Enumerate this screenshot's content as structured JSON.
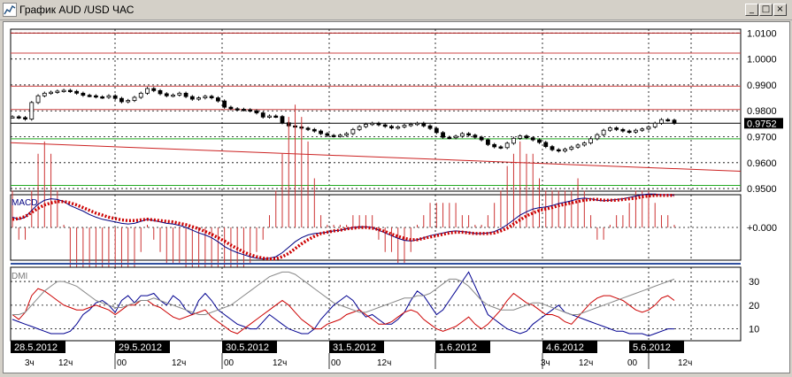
{
  "window": {
    "title": "График AUD /USD  ЧАС",
    "minimize_glyph": "_",
    "maximize_glyph": "□",
    "close_glyph": "×"
  },
  "chart_data": [
    {
      "type": "candlestick",
      "panel": "price",
      "title": "",
      "ylim": [
        0.949,
        1.0115
      ],
      "y_ticks": [
        "1.0100",
        "1.0000",
        "0.9900",
        "0.9800",
        "0.9700",
        "0.9600",
        "0.9500"
      ],
      "current_price": "0.9752",
      "hlines": [
        {
          "value": 1.01,
          "color": "#aa2222",
          "style": "solid"
        },
        {
          "value": 1.01,
          "color": "#aa2222",
          "style": "dashed"
        },
        {
          "value": 1.0023,
          "color": "#cc4444",
          "style": "solid"
        },
        {
          "value": 0.9895,
          "color": "#cc4444",
          "style": "solid"
        },
        {
          "value": 0.9805,
          "color": "#cc4444",
          "style": "solid"
        },
        {
          "value": 0.9752,
          "color": "#000000",
          "style": "solid"
        },
        {
          "value": 0.9692,
          "color": "#22aa22",
          "style": "solid"
        },
        {
          "value": 0.9512,
          "color": "#22aa22",
          "style": "solid"
        }
      ],
      "trendline": {
        "from": 0.9677,
        "to": 0.9567,
        "color": "#cc2222"
      },
      "close": [
        0.9777,
        0.9774,
        0.9768,
        0.9832,
        0.9858,
        0.9868,
        0.9872,
        0.9876,
        0.9879,
        0.9875,
        0.9868,
        0.986,
        0.9858,
        0.9854,
        0.9852,
        0.9858,
        0.9848,
        0.9835,
        0.984,
        0.9852,
        0.9868,
        0.9886,
        0.9878,
        0.9866,
        0.9858,
        0.9861,
        0.9868,
        0.9855,
        0.9845,
        0.985,
        0.9856,
        0.985,
        0.9838,
        0.9814,
        0.9808,
        0.9806,
        0.9804,
        0.98,
        0.9792,
        0.9776,
        0.978,
        0.9778,
        0.9754,
        0.9742,
        0.9738,
        0.9733,
        0.9728,
        0.9722,
        0.9712,
        0.9705,
        0.9703,
        0.9706,
        0.9712,
        0.9728,
        0.9739,
        0.9748,
        0.9752,
        0.9746,
        0.974,
        0.9734,
        0.9738,
        0.9744,
        0.9748,
        0.9752,
        0.9742,
        0.9732,
        0.9716,
        0.9698,
        0.9696,
        0.9702,
        0.9712,
        0.9706,
        0.9698,
        0.9688,
        0.967,
        0.9661,
        0.9658,
        0.9675,
        0.9694,
        0.9703,
        0.9696,
        0.9688,
        0.9678,
        0.9662,
        0.965,
        0.9645,
        0.9652,
        0.966,
        0.9668,
        0.9676,
        0.9692,
        0.9708,
        0.9725,
        0.9734,
        0.9728,
        0.9722,
        0.9718,
        0.9725,
        0.973,
        0.9738,
        0.9752,
        0.9766,
        0.9764,
        0.9752
      ]
    },
    {
      "type": "line",
      "panel": "indicator",
      "title": "MACD",
      "y_ticks": [
        "+0.000"
      ],
      "ylim": [
        -0.0048,
        0.0048
      ],
      "series": [
        {
          "values": [
            0.0015,
            0.0012,
            0.0015,
            0.0025,
            0.0034,
            0.004,
            0.0042,
            0.0041,
            0.0038,
            0.0032,
            0.0028,
            0.0024,
            0.0019,
            0.0015,
            0.0012,
            0.001,
            0.0008,
            0.0006,
            0.0005,
            0.0006,
            0.0009,
            0.0012,
            0.001,
            0.0008,
            0.0006,
            0.0005,
            0.0003,
            0.0,
            -0.0004,
            -0.0008,
            -0.0011,
            -0.0015,
            -0.0021,
            -0.0028,
            -0.0033,
            -0.0037,
            -0.004,
            -0.0043,
            -0.0045,
            -0.0046,
            -0.0045,
            -0.0043,
            -0.0037,
            -0.0029,
            -0.0021,
            -0.0015,
            -0.0011,
            -0.0009,
            -0.0008,
            -0.0007,
            -0.0005,
            -0.0004,
            -0.0002,
            0.0,
            0.0001,
            0.0001,
            0.0,
            -0.0004,
            -0.0008,
            -0.0012,
            -0.0016,
            -0.0019,
            -0.002,
            -0.0018,
            -0.0015,
            -0.0012,
            -0.001,
            -0.0008,
            -0.0006,
            -0.0005,
            -0.0006,
            -0.0007,
            -0.0009,
            -0.0009,
            -0.0008,
            -0.0006,
            -0.0002,
            0.0004,
            0.0011,
            0.0018,
            0.0023,
            0.0027,
            0.0029,
            0.003,
            0.0032,
            0.0035,
            0.0037,
            0.0039,
            0.0042,
            0.0043,
            0.0042,
            0.004,
            0.0039,
            0.004,
            0.0041,
            0.0042,
            0.0044,
            0.0046,
            0.0048,
            0.0049,
            0.0049,
            0.0048,
            0.0048,
            0.0047
          ],
          "color": "#000080",
          "style": "solid"
        },
        {
          "values": [
            0.0012,
            0.0013,
            0.0016,
            0.0022,
            0.0028,
            0.0033,
            0.0036,
            0.0038,
            0.0038,
            0.0036,
            0.0033,
            0.0029,
            0.0025,
            0.0021,
            0.0018,
            0.0015,
            0.0013,
            0.0011,
            0.001,
            0.001,
            0.0011,
            0.0012,
            0.0011,
            0.001,
            0.0009,
            0.0008,
            0.0006,
            0.0004,
            0.0001,
            -0.0002,
            -0.0006,
            -0.001,
            -0.0015,
            -0.002,
            -0.0026,
            -0.0031,
            -0.0036,
            -0.004,
            -0.0043,
            -0.0045,
            -0.0046,
            -0.0046,
            -0.0043,
            -0.0038,
            -0.0031,
            -0.0024,
            -0.0018,
            -0.0013,
            -0.0009,
            -0.0007,
            -0.0005,
            -0.0004,
            -0.0002,
            -0.0001,
            0.0,
            0.0,
            -0.0001,
            -0.0003,
            -0.0006,
            -0.001,
            -0.0013,
            -0.0016,
            -0.0018,
            -0.0018,
            -0.0016,
            -0.0014,
            -0.0012,
            -0.001,
            -0.0008,
            -0.0007,
            -0.0007,
            -0.0008,
            -0.0009,
            -0.0009,
            -0.0009,
            -0.0008,
            -0.0005,
            -0.0001,
            0.0005,
            0.0011,
            0.0017,
            0.0021,
            0.0025,
            0.0027,
            0.0029,
            0.0032,
            0.0034,
            0.0036,
            0.0038,
            0.004,
            0.0041,
            0.0041,
            0.004,
            0.004,
            0.004,
            0.0041,
            0.0042,
            0.0043,
            0.0045,
            0.0046,
            0.0047,
            0.0047,
            0.0047,
            0.0047
          ],
          "color": "#cc0000",
          "style": "dotted"
        }
      ],
      "histogram": {
        "color": "#cc3333"
      }
    },
    {
      "type": "line",
      "panel": "indicator",
      "title": "DMI",
      "y_ticks": [
        "30",
        "20",
        "10"
      ],
      "ylim": [
        5,
        36
      ],
      "series": [
        {
          "values": [
            14,
            13,
            12,
            11,
            10,
            9,
            8,
            8,
            8,
            9,
            12,
            16,
            18,
            21,
            22,
            20,
            17,
            22,
            24,
            21,
            24,
            24,
            25,
            22,
            20,
            24,
            22,
            18,
            16,
            22,
            25,
            22,
            18,
            16,
            14,
            12,
            11,
            10,
            10,
            13,
            16,
            14,
            12,
            10,
            9,
            8,
            8,
            10,
            14,
            17,
            20,
            22,
            24,
            22,
            18,
            15,
            16,
            14,
            12,
            12,
            14,
            17,
            22,
            26,
            24,
            20,
            16,
            18,
            22,
            26,
            30,
            34,
            28,
            22,
            16,
            14,
            12,
            10,
            9,
            8,
            9,
            12,
            14,
            16,
            18,
            20,
            17,
            16,
            15,
            14,
            13,
            12,
            11,
            10,
            9,
            9,
            8,
            8,
            8,
            7,
            8,
            9,
            10,
            10
          ],
          "color": "#000090"
        },
        {
          "values": [
            16,
            14,
            17,
            24,
            27,
            26,
            24,
            22,
            20,
            19,
            18,
            18,
            19,
            20,
            19,
            18,
            16,
            18,
            20,
            20,
            22,
            22,
            20,
            19,
            17,
            15,
            14,
            15,
            16,
            17,
            18,
            15,
            13,
            11,
            9,
            8,
            10,
            12,
            14,
            16,
            18,
            20,
            22,
            20,
            17,
            14,
            12,
            10,
            10,
            12,
            13,
            14,
            16,
            17,
            18,
            16,
            14,
            12,
            12,
            13,
            15,
            17,
            18,
            17,
            14,
            12,
            10,
            9,
            10,
            11,
            13,
            15,
            12,
            10,
            12,
            15,
            18,
            22,
            25,
            23,
            21,
            20,
            18,
            16,
            16,
            15,
            13,
            12,
            15,
            18,
            21,
            23,
            24,
            24,
            23,
            22,
            20,
            18,
            17,
            18,
            20,
            23,
            24,
            22
          ],
          "color": "#cc0000"
        },
        {
          "values": [
            16,
            16,
            17,
            20,
            23,
            26,
            28,
            30,
            30,
            29,
            28,
            26,
            24,
            22,
            21,
            20,
            19,
            19,
            20,
            21,
            22,
            22,
            23,
            22,
            21,
            20,
            19,
            18,
            17,
            16,
            16,
            17,
            18,
            19,
            20,
            22,
            24,
            26,
            28,
            30,
            32,
            33,
            34,
            34,
            33,
            31,
            29,
            27,
            25,
            23,
            21,
            20,
            19,
            18,
            17,
            17,
            18,
            19,
            20,
            21,
            22,
            23,
            23,
            24,
            24,
            25,
            27,
            29,
            31,
            31,
            30,
            28,
            25,
            22,
            20,
            19,
            18,
            18,
            18,
            19,
            20,
            21,
            21,
            20,
            19,
            18,
            17,
            16,
            16,
            17,
            18,
            19,
            20,
            21,
            22,
            23,
            24,
            25,
            26,
            27,
            28,
            29,
            30,
            31
          ],
          "color": "#888888"
        }
      ]
    }
  ],
  "time_axis": {
    "date_labels": [
      "28.5.2012",
      "29.5.2012",
      "30.5.2012",
      "31.5.2012",
      "1.6.2012",
      "4.6.2012",
      "5.6.2012"
    ],
    "hour_labels": [
      "3ч",
      "12ч",
      "00",
      "12ч",
      "00",
      "12ч",
      "00",
      "12ч",
      "3ч",
      "12ч",
      "00",
      "12ч"
    ]
  }
}
